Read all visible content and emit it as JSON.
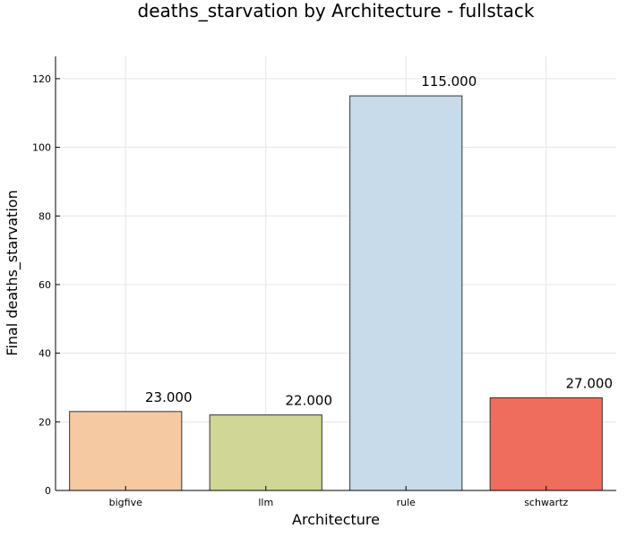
{
  "chart_data": {
    "type": "bar",
    "title": "deaths_starvation by Architecture - fullstack",
    "xlabel": "Architecture",
    "ylabel": "Final deaths_starvation",
    "categories": [
      "bigfive",
      "llm",
      "rule",
      "schwartz"
    ],
    "values": [
      23,
      22,
      115,
      27
    ],
    "data_labels": [
      "23.000",
      "22.000",
      "115.000",
      "27.000"
    ],
    "colors": [
      "#f5c9a2",
      "#d0d794",
      "#c7dbea",
      "#ee6d5c"
    ],
    "ylim": [
      0,
      126.5
    ],
    "yticks": [
      0,
      20,
      40,
      60,
      80,
      100,
      120
    ],
    "ytick_labels": [
      "0",
      "20",
      "40",
      "60",
      "80",
      "100",
      "120"
    ],
    "grid": true,
    "legend": "none"
  }
}
